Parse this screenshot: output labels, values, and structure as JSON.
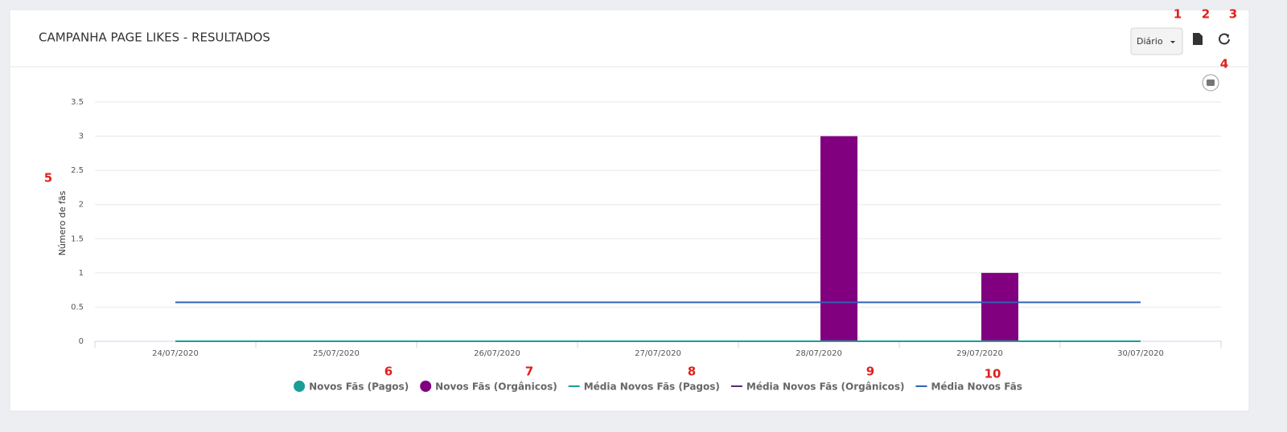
{
  "header": {
    "title": "CAMPANHA PAGE LIKES - RESULTADOS",
    "period_button": "Diário"
  },
  "annotations": [
    "1",
    "2",
    "3",
    "4",
    "5",
    "6",
    "7",
    "8",
    "9",
    "10"
  ],
  "chart_data": {
    "type": "bar",
    "y_label": "Número de fãs",
    "categories": [
      "24/07/2020",
      "25/07/2020",
      "26/07/2020",
      "27/07/2020",
      "28/07/2020",
      "29/07/2020",
      "30/07/2020"
    ],
    "series": [
      {
        "name": "Novos Fãs (Pagos)",
        "type": "bar",
        "color": "#1a9e96",
        "values": [
          0,
          0,
          0,
          0,
          0,
          0,
          0
        ]
      },
      {
        "name": "Novos Fãs (Orgânicos)",
        "type": "bar",
        "color": "#800080",
        "values": [
          0,
          0,
          0,
          0,
          3,
          1,
          0
        ]
      },
      {
        "name": "Média Novos Fãs (Pagos)",
        "type": "line",
        "color": "#1a9e96",
        "values": [
          0,
          0,
          0,
          0,
          0,
          0,
          0
        ]
      },
      {
        "name": "Média Novos Fãs (Orgânicos)",
        "type": "line",
        "color": "#5b2a6e",
        "values": [
          0.57,
          0.57,
          0.57,
          0.57,
          0.57,
          0.57,
          0.57
        ]
      },
      {
        "name": "Média Novos Fãs",
        "type": "line",
        "color": "#2f62b5",
        "values": [
          0.57,
          0.57,
          0.57,
          0.57,
          0.57,
          0.57,
          0.57
        ]
      }
    ],
    "ylim": [
      0,
      3.5
    ],
    "yticks": [
      0,
      0.5,
      1,
      1.5,
      2,
      2.5,
      3,
      3.5
    ],
    "grid": true
  }
}
